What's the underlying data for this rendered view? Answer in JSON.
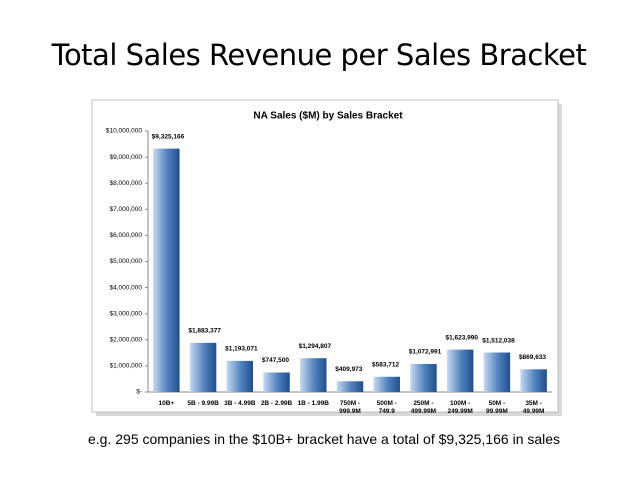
{
  "title": "Total Sales Revenue per Sales Bracket",
  "caption": "e.g. 295 companies in the $10B+ bracket have a total of $9,325,166 in sales",
  "chart_data": {
    "type": "bar",
    "title": "NA Sales ($M) by Sales Bracket",
    "categories": [
      "10B+",
      "5B - 9.99B",
      "3B - 4.99B",
      "2B - 2.99B",
      "1B - 1.99B",
      "750M - 999.9M",
      "500M - 749.9",
      "250M - 499.99M",
      "100M - 249.99M",
      "50M - 99.99M",
      "35M - 49.99M"
    ],
    "values": [
      9325166,
      1883377,
      1193071,
      747500,
      1294807,
      409973,
      583712,
      1072991,
      1623990,
      1512038,
      869633
    ],
    "value_labels": [
      "$9,325,166",
      "$1,883,377",
      "$1,193,071",
      "$747,500",
      "$1,294,807",
      "$409,973",
      "$583,712",
      "$1,072,991",
      "$1,623,990",
      "$1,512,038",
      "$869,633"
    ],
    "color": "#4f81bd",
    "ylim": [
      0,
      10000000
    ],
    "yticks": [
      {
        "value": 0,
        "label": "$-"
      },
      {
        "value": 1000000,
        "label": "$1,000,000"
      },
      {
        "value": 2000000,
        "label": "$2,000,000"
      },
      {
        "value": 3000000,
        "label": "$3,000,000"
      },
      {
        "value": 4000000,
        "label": "$4,000,000"
      },
      {
        "value": 5000000,
        "label": "$5,000,000"
      },
      {
        "value": 6000000,
        "label": "$6,000,000"
      },
      {
        "value": 7000000,
        "label": "$7,000,000"
      },
      {
        "value": 8000000,
        "label": "$8,000,000"
      },
      {
        "value": 9000000,
        "label": "$9,000,000"
      },
      {
        "value": 10000000,
        "label": "$10,000,000"
      }
    ],
    "grid": false
  }
}
